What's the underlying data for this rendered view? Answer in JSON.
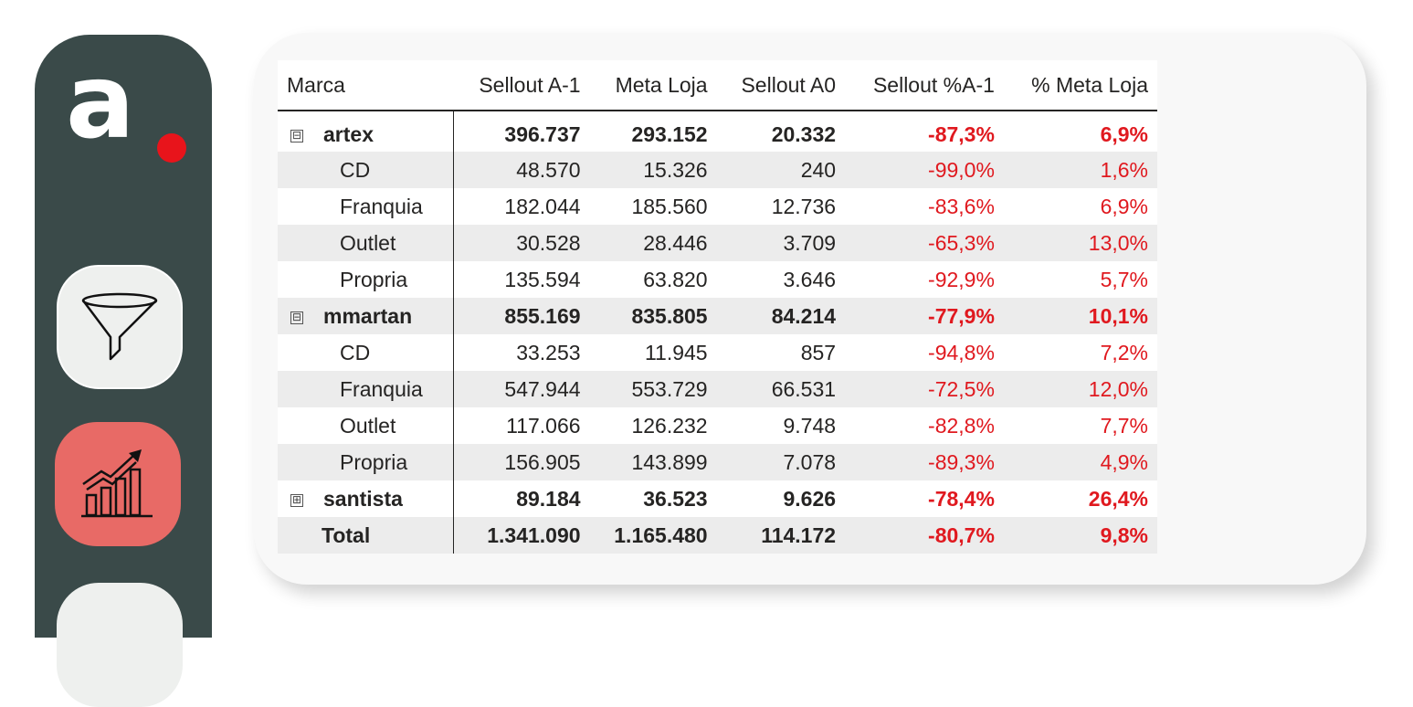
{
  "sidebar": {
    "logo_letter": "a",
    "brand_dot_color": "#e8141b",
    "nav": [
      {
        "icon": "filter-funnel-icon",
        "active": false
      },
      {
        "icon": "sales-growth-chart-icon",
        "active": true
      },
      {
        "icon": "unknown-icon",
        "active": false
      }
    ]
  },
  "table": {
    "headers": [
      "Marca",
      "Sellout A-1",
      "Meta Loja",
      "Sellout A0",
      "Sellout %A-1",
      "% Meta Loja"
    ],
    "rows": [
      {
        "label": "artex",
        "level": "group",
        "toggle": "⊟",
        "values": [
          "396.737",
          "293.152",
          "20.332",
          "-87,3%",
          "6,9%"
        ]
      },
      {
        "label": "CD",
        "level": "child",
        "values": [
          "48.570",
          "15.326",
          "240",
          "-99,0%",
          "1,6%"
        ]
      },
      {
        "label": "Franquia",
        "level": "child",
        "values": [
          "182.044",
          "185.560",
          "12.736",
          "-83,6%",
          "6,9%"
        ]
      },
      {
        "label": "Outlet",
        "level": "child",
        "values": [
          "30.528",
          "28.446",
          "3.709",
          "-65,3%",
          "13,0%"
        ]
      },
      {
        "label": "Propria",
        "level": "child",
        "values": [
          "135.594",
          "63.820",
          "3.646",
          "-92,9%",
          "5,7%"
        ]
      },
      {
        "label": "mmartan",
        "level": "group",
        "toggle": "⊟",
        "values": [
          "855.169",
          "835.805",
          "84.214",
          "-77,9%",
          "10,1%"
        ]
      },
      {
        "label": "CD",
        "level": "child",
        "values": [
          "33.253",
          "11.945",
          "857",
          "-94,8%",
          "7,2%"
        ]
      },
      {
        "label": "Franquia",
        "level": "child",
        "values": [
          "547.944",
          "553.729",
          "66.531",
          "-72,5%",
          "12,0%"
        ]
      },
      {
        "label": "Outlet",
        "level": "child",
        "values": [
          "117.066",
          "126.232",
          "9.748",
          "-82,8%",
          "7,7%"
        ]
      },
      {
        "label": "Propria",
        "level": "child",
        "values": [
          "156.905",
          "143.899",
          "7.078",
          "-89,3%",
          "4,9%"
        ]
      },
      {
        "label": "santista",
        "level": "group",
        "toggle": "⊞",
        "values": [
          "89.184",
          "36.523",
          "9.626",
          "-78,4%",
          "26,4%"
        ]
      },
      {
        "label": "Total",
        "level": "total",
        "values": [
          "1.341.090",
          "1.165.480",
          "114.172",
          "-80,7%",
          "9,8%"
        ]
      }
    ]
  },
  "colors": {
    "sidebar": "#3a4a49",
    "accent_red": "#e0191f",
    "active_nav": "#e86a66",
    "row_shade": "#ececec"
  }
}
